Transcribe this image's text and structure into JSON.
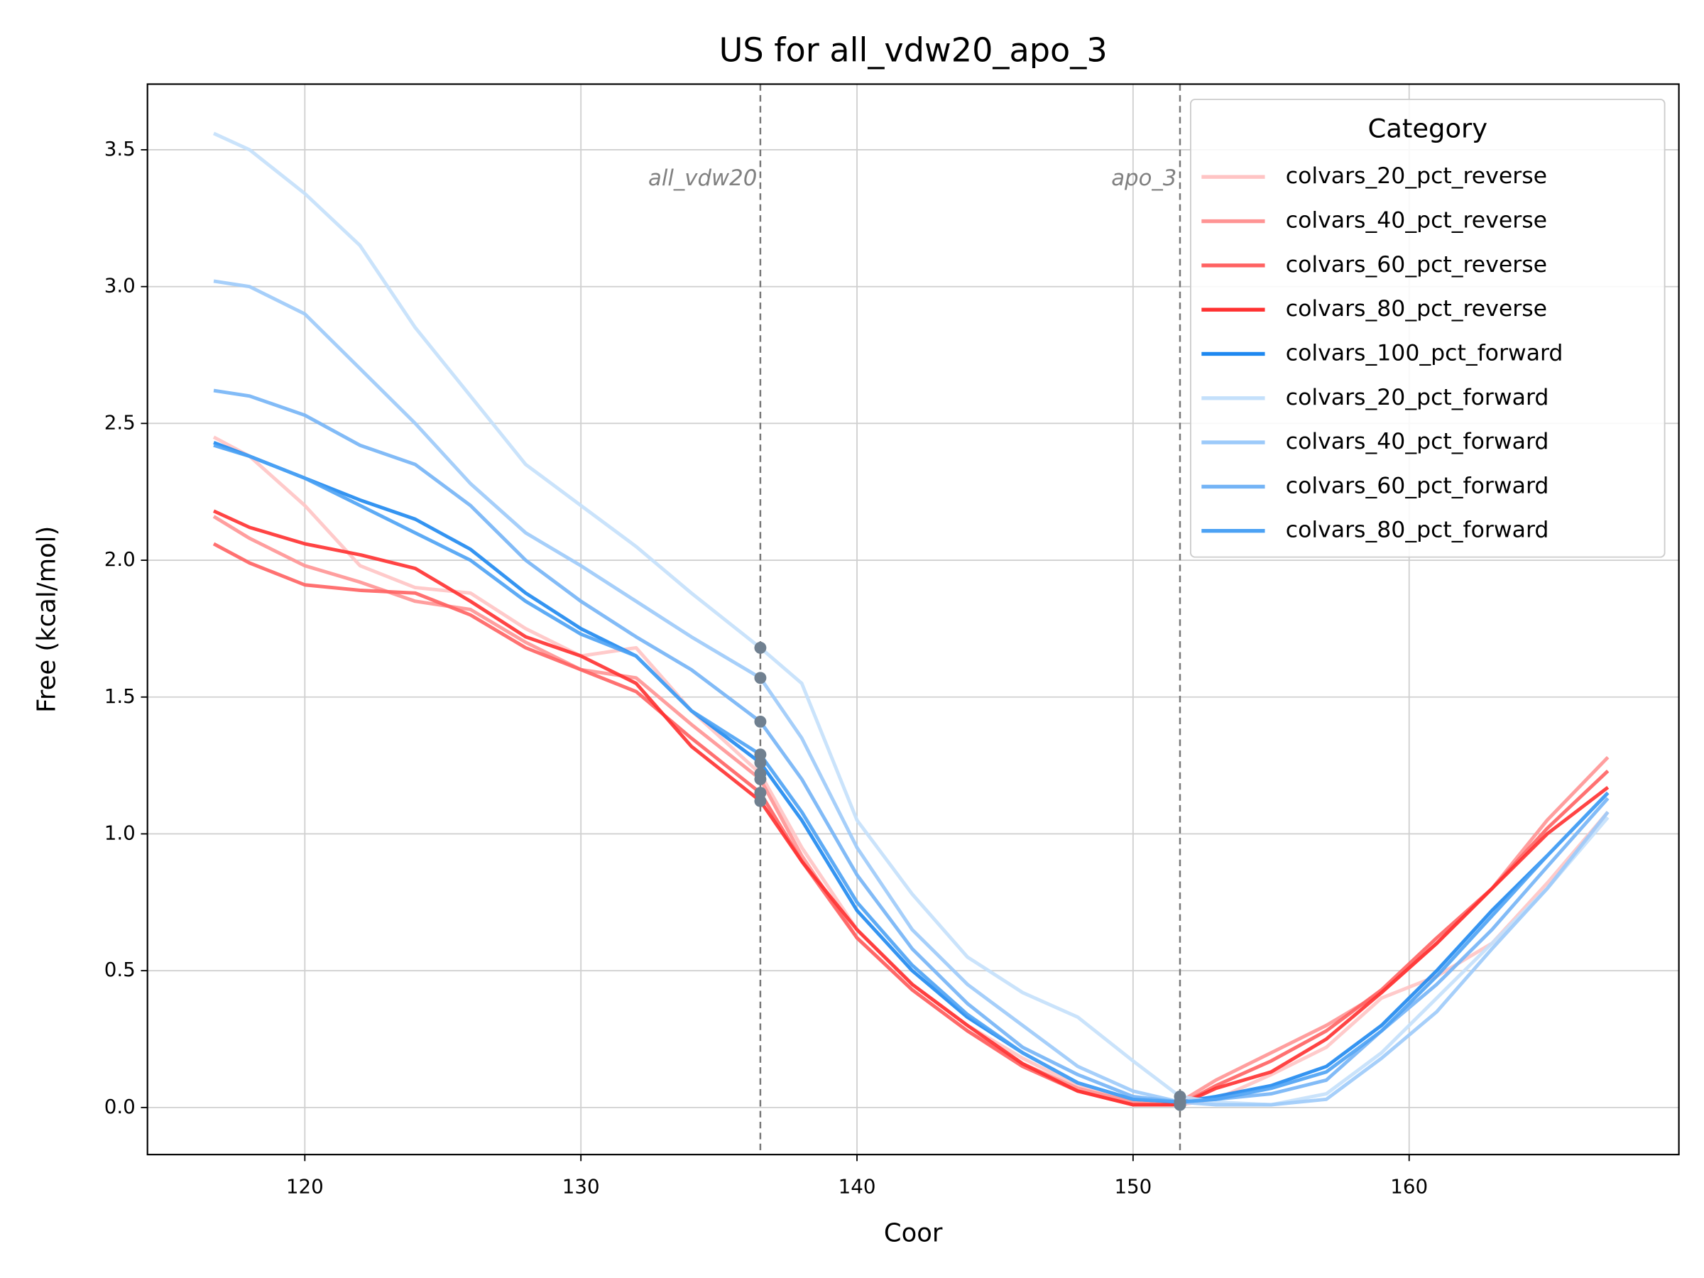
{
  "chart_data": {
    "type": "line",
    "title": "US for all_vdw20_apo_3",
    "x_label": "Coor",
    "y_label": "Free (kcal/mol)",
    "x": [
      116.7,
      118,
      120,
      122,
      124,
      126,
      128,
      130,
      132,
      134,
      136.5,
      138,
      140,
      142,
      144,
      146,
      148,
      150,
      151.7,
      153,
      155,
      157,
      159,
      161,
      163,
      165,
      167.2
    ],
    "series": [
      {
        "name": "colvars_20_pct_reverse",
        "color": "#ffc4c4",
        "values": [
          2.45,
          2.38,
          2.2,
          1.98,
          1.9,
          1.88,
          1.75,
          1.65,
          1.68,
          1.45,
          1.22,
          0.95,
          0.65,
          0.45,
          0.3,
          0.18,
          0.08,
          0.02,
          0.01,
          0.03,
          0.12,
          0.22,
          0.4,
          0.48,
          0.6,
          0.82,
          1.08
        ]
      },
      {
        "name": "colvars_40_pct_reverse",
        "color": "#ff9494",
        "values": [
          2.16,
          2.08,
          1.98,
          1.92,
          1.85,
          1.82,
          1.7,
          1.6,
          1.57,
          1.4,
          1.2,
          0.92,
          0.62,
          0.43,
          0.28,
          0.16,
          0.07,
          0.02,
          0.02,
          0.1,
          0.2,
          0.3,
          0.42,
          0.6,
          0.8,
          1.05,
          1.28
        ]
      },
      {
        "name": "colvars_60_pct_reverse",
        "color": "#ff6262",
        "values": [
          2.06,
          1.99,
          1.91,
          1.89,
          1.88,
          1.8,
          1.68,
          1.6,
          1.52,
          1.35,
          1.15,
          0.9,
          0.62,
          0.43,
          0.28,
          0.15,
          0.06,
          0.01,
          0.01,
          0.08,
          0.17,
          0.28,
          0.43,
          0.62,
          0.8,
          1.02,
          1.23
        ]
      },
      {
        "name": "colvars_80_pct_reverse",
        "color": "#ff3030",
        "values": [
          2.18,
          2.12,
          2.06,
          2.02,
          1.97,
          1.85,
          1.72,
          1.65,
          1.55,
          1.32,
          1.12,
          0.9,
          0.65,
          0.45,
          0.3,
          0.16,
          0.06,
          0.01,
          0.01,
          0.07,
          0.13,
          0.25,
          0.42,
          0.6,
          0.8,
          1.0,
          1.17
        ]
      },
      {
        "name": "colvars_100_pct_forward",
        "color": "#1e88f0",
        "values": [
          2.43,
          2.38,
          2.3,
          2.22,
          2.15,
          2.04,
          1.88,
          1.75,
          1.65,
          1.45,
          1.26,
          1.05,
          0.72,
          0.5,
          0.33,
          0.2,
          0.09,
          0.03,
          0.02,
          0.04,
          0.08,
          0.15,
          0.3,
          0.5,
          0.72,
          0.92,
          1.15
        ]
      },
      {
        "name": "colvars_20_pct_forward",
        "color": "#c4e0fb",
        "values": [
          3.56,
          3.5,
          3.34,
          3.15,
          2.85,
          2.6,
          2.35,
          2.2,
          2.05,
          1.88,
          1.68,
          1.55,
          1.05,
          0.78,
          0.55,
          0.42,
          0.33,
          0.17,
          0.04,
          0.02,
          0.01,
          0.05,
          0.2,
          0.4,
          0.6,
          0.8,
          1.06
        ]
      },
      {
        "name": "colvars_40_pct_forward",
        "color": "#9ccafa",
        "values": [
          3.02,
          3.0,
          2.9,
          2.7,
          2.5,
          2.28,
          2.1,
          1.98,
          1.85,
          1.72,
          1.57,
          1.35,
          0.95,
          0.65,
          0.45,
          0.3,
          0.15,
          0.06,
          0.02,
          0.01,
          0.01,
          0.03,
          0.18,
          0.35,
          0.58,
          0.8,
          1.08
        ]
      },
      {
        "name": "colvars_60_pct_forward",
        "color": "#74b4f6",
        "values": [
          2.62,
          2.6,
          2.53,
          2.42,
          2.35,
          2.2,
          2.0,
          1.85,
          1.72,
          1.6,
          1.41,
          1.2,
          0.85,
          0.58,
          0.38,
          0.22,
          0.12,
          0.04,
          0.02,
          0.03,
          0.05,
          0.1,
          0.28,
          0.45,
          0.65,
          0.88,
          1.13
        ]
      },
      {
        "name": "colvars_80_pct_forward",
        "color": "#4ca2f4",
        "values": [
          2.42,
          2.38,
          2.3,
          2.2,
          2.1,
          2.0,
          1.85,
          1.73,
          1.65,
          1.45,
          1.29,
          1.08,
          0.75,
          0.52,
          0.34,
          0.2,
          0.09,
          0.03,
          0.02,
          0.03,
          0.07,
          0.13,
          0.28,
          0.48,
          0.7,
          0.92,
          1.15
        ]
      }
    ],
    "annotations": [
      {
        "x": 136.5,
        "label": "all_vdw20"
      },
      {
        "x": 151.7,
        "label": "apo_3"
      }
    ],
    "xlim": [
      114.3,
      169.77
    ],
    "ylim": [
      -0.172,
      3.74
    ],
    "xticks": [
      120,
      130,
      140,
      150,
      160
    ],
    "yticks": [
      {
        "value": 0,
        "label": "0.0"
      },
      0.5,
      {
        "value": 1,
        "label": "1.0"
      },
      1.5,
      {
        "value": 2,
        "label": "2.0"
      },
      2.5,
      {
        "value": 3,
        "label": "3.0"
      },
      3.5
    ],
    "grid": true,
    "legend_title": "Category",
    "legend_position": "upper right"
  }
}
